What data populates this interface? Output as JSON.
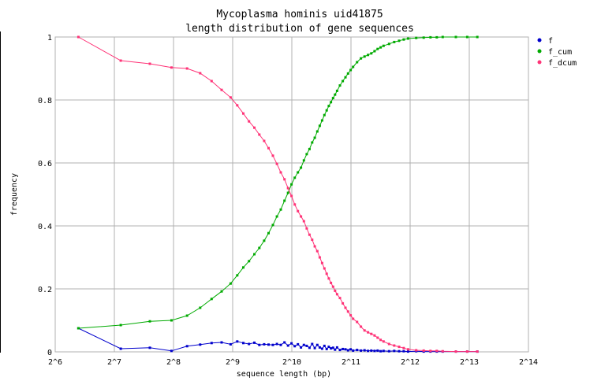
{
  "chart_data": {
    "type": "line",
    "title": "Mycoplasma hominis uid41875",
    "subtitle": "length distribution of gene sequences",
    "xlabel": "sequence length (bp)",
    "ylabel": "frequency",
    "xscale": "log2",
    "xlim_exponent": [
      6,
      14
    ],
    "x_tick_labels": [
      "2^6",
      "2^7",
      "2^8",
      "2^9",
      "2^10",
      "2^11",
      "2^12",
      "2^13",
      "2^14"
    ],
    "ylim": [
      0,
      1
    ],
    "y_tick_labels": [
      "0",
      "0.2",
      "0.4",
      "0.6",
      "0.8",
      "1"
    ],
    "grid": true,
    "legend_position": "top-right",
    "colors": {
      "f": "#0000cc",
      "f_cum": "#00aa00",
      "f_dcum": "#ff3377",
      "grid": "#b0b0b0"
    },
    "series": [
      {
        "name": "f",
        "x": [
          84,
          138,
          194,
          250,
          300,
          350,
          400,
          450,
          500,
          540,
          580,
          620,
          660,
          700,
          740,
          780,
          820,
          860,
          900,
          940,
          980,
          1020,
          1060,
          1100,
          1140,
          1180,
          1220,
          1260,
          1300,
          1340,
          1380,
          1420,
          1460,
          1500,
          1540,
          1580,
          1620,
          1660,
          1700,
          1740,
          1800,
          1860,
          1920,
          1980,
          2040,
          2100,
          2200,
          2300,
          2400,
          2500,
          2600,
          2700,
          2800,
          2900,
          3000,
          3200,
          3400,
          3600,
          3800,
          4000,
          4400,
          4800,
          5200,
          5600,
          6000,
          7000,
          8000,
          9000
        ],
        "values": [
          0.075,
          0.01,
          0.013,
          0.003,
          0.018,
          0.023,
          0.028,
          0.03,
          0.024,
          0.033,
          0.028,
          0.025,
          0.029,
          0.022,
          0.024,
          0.023,
          0.022,
          0.025,
          0.022,
          0.03,
          0.02,
          0.027,
          0.018,
          0.024,
          0.014,
          0.022,
          0.019,
          0.013,
          0.025,
          0.012,
          0.022,
          0.014,
          0.01,
          0.019,
          0.009,
          0.016,
          0.011,
          0.013,
          0.007,
          0.014,
          0.006,
          0.009,
          0.008,
          0.005,
          0.008,
          0.004,
          0.006,
          0.004,
          0.005,
          0.003,
          0.004,
          0.003,
          0.004,
          0.002,
          0.003,
          0.002,
          0.003,
          0.002,
          0.002,
          0.001,
          0.002,
          0.001,
          0.001,
          0.001,
          0.001,
          0.001,
          0.001,
          0.001
        ]
      },
      {
        "name": "f_cum",
        "x": [
          84,
          138,
          194,
          250,
          300,
          350,
          400,
          450,
          500,
          540,
          580,
          620,
          660,
          700,
          740,
          780,
          820,
          860,
          900,
          940,
          980,
          1020,
          1060,
          1100,
          1140,
          1180,
          1220,
          1260,
          1300,
          1340,
          1380,
          1420,
          1460,
          1500,
          1540,
          1580,
          1620,
          1660,
          1700,
          1740,
          1800,
          1860,
          1920,
          1980,
          2040,
          2100,
          2200,
          2300,
          2400,
          2500,
          2600,
          2700,
          2800,
          2900,
          3000,
          3200,
          3400,
          3600,
          3800,
          4000,
          4400,
          4800,
          5200,
          5600,
          6000,
          7000,
          8000,
          9000
        ],
        "values": [
          0.075,
          0.085,
          0.097,
          0.1,
          0.115,
          0.14,
          0.168,
          0.192,
          0.217,
          0.243,
          0.268,
          0.288,
          0.31,
          0.33,
          0.353,
          0.377,
          0.403,
          0.43,
          0.452,
          0.48,
          0.505,
          0.532,
          0.553,
          0.57,
          0.585,
          0.608,
          0.628,
          0.644,
          0.665,
          0.68,
          0.7,
          0.718,
          0.735,
          0.752,
          0.767,
          0.781,
          0.793,
          0.806,
          0.817,
          0.829,
          0.846,
          0.86,
          0.872,
          0.884,
          0.895,
          0.905,
          0.92,
          0.932,
          0.938,
          0.943,
          0.948,
          0.955,
          0.962,
          0.967,
          0.972,
          0.978,
          0.984,
          0.988,
          0.992,
          0.995,
          0.997,
          0.998,
          0.999,
          0.999,
          1.0,
          1.0,
          1.0,
          1.0
        ]
      },
      {
        "name": "f_dcum",
        "x": [
          84,
          138,
          194,
          250,
          300,
          350,
          400,
          450,
          500,
          540,
          580,
          620,
          660,
          700,
          740,
          780,
          820,
          860,
          900,
          940,
          980,
          1020,
          1060,
          1100,
          1140,
          1180,
          1220,
          1260,
          1300,
          1340,
          1380,
          1420,
          1460,
          1500,
          1540,
          1580,
          1620,
          1660,
          1700,
          1740,
          1800,
          1860,
          1920,
          1980,
          2040,
          2100,
          2200,
          2300,
          2400,
          2500,
          2600,
          2700,
          2800,
          2900,
          3000,
          3200,
          3400,
          3600,
          3800,
          4000,
          4400,
          4800,
          5200,
          5600,
          6000,
          7000,
          8000,
          9000
        ],
        "values": [
          1.0,
          0.925,
          0.915,
          0.903,
          0.9,
          0.885,
          0.86,
          0.832,
          0.808,
          0.783,
          0.757,
          0.732,
          0.712,
          0.69,
          0.67,
          0.647,
          0.623,
          0.597,
          0.57,
          0.548,
          0.52,
          0.495,
          0.468,
          0.447,
          0.43,
          0.415,
          0.392,
          0.372,
          0.356,
          0.335,
          0.32,
          0.3,
          0.282,
          0.265,
          0.248,
          0.233,
          0.219,
          0.207,
          0.194,
          0.183,
          0.171,
          0.154,
          0.14,
          0.128,
          0.116,
          0.105,
          0.095,
          0.08,
          0.068,
          0.062,
          0.057,
          0.052,
          0.045,
          0.038,
          0.033,
          0.025,
          0.02,
          0.016,
          0.012,
          0.008,
          0.005,
          0.004,
          0.003,
          0.003,
          0.002,
          0.001,
          0.001,
          0.001
        ]
      }
    ]
  }
}
